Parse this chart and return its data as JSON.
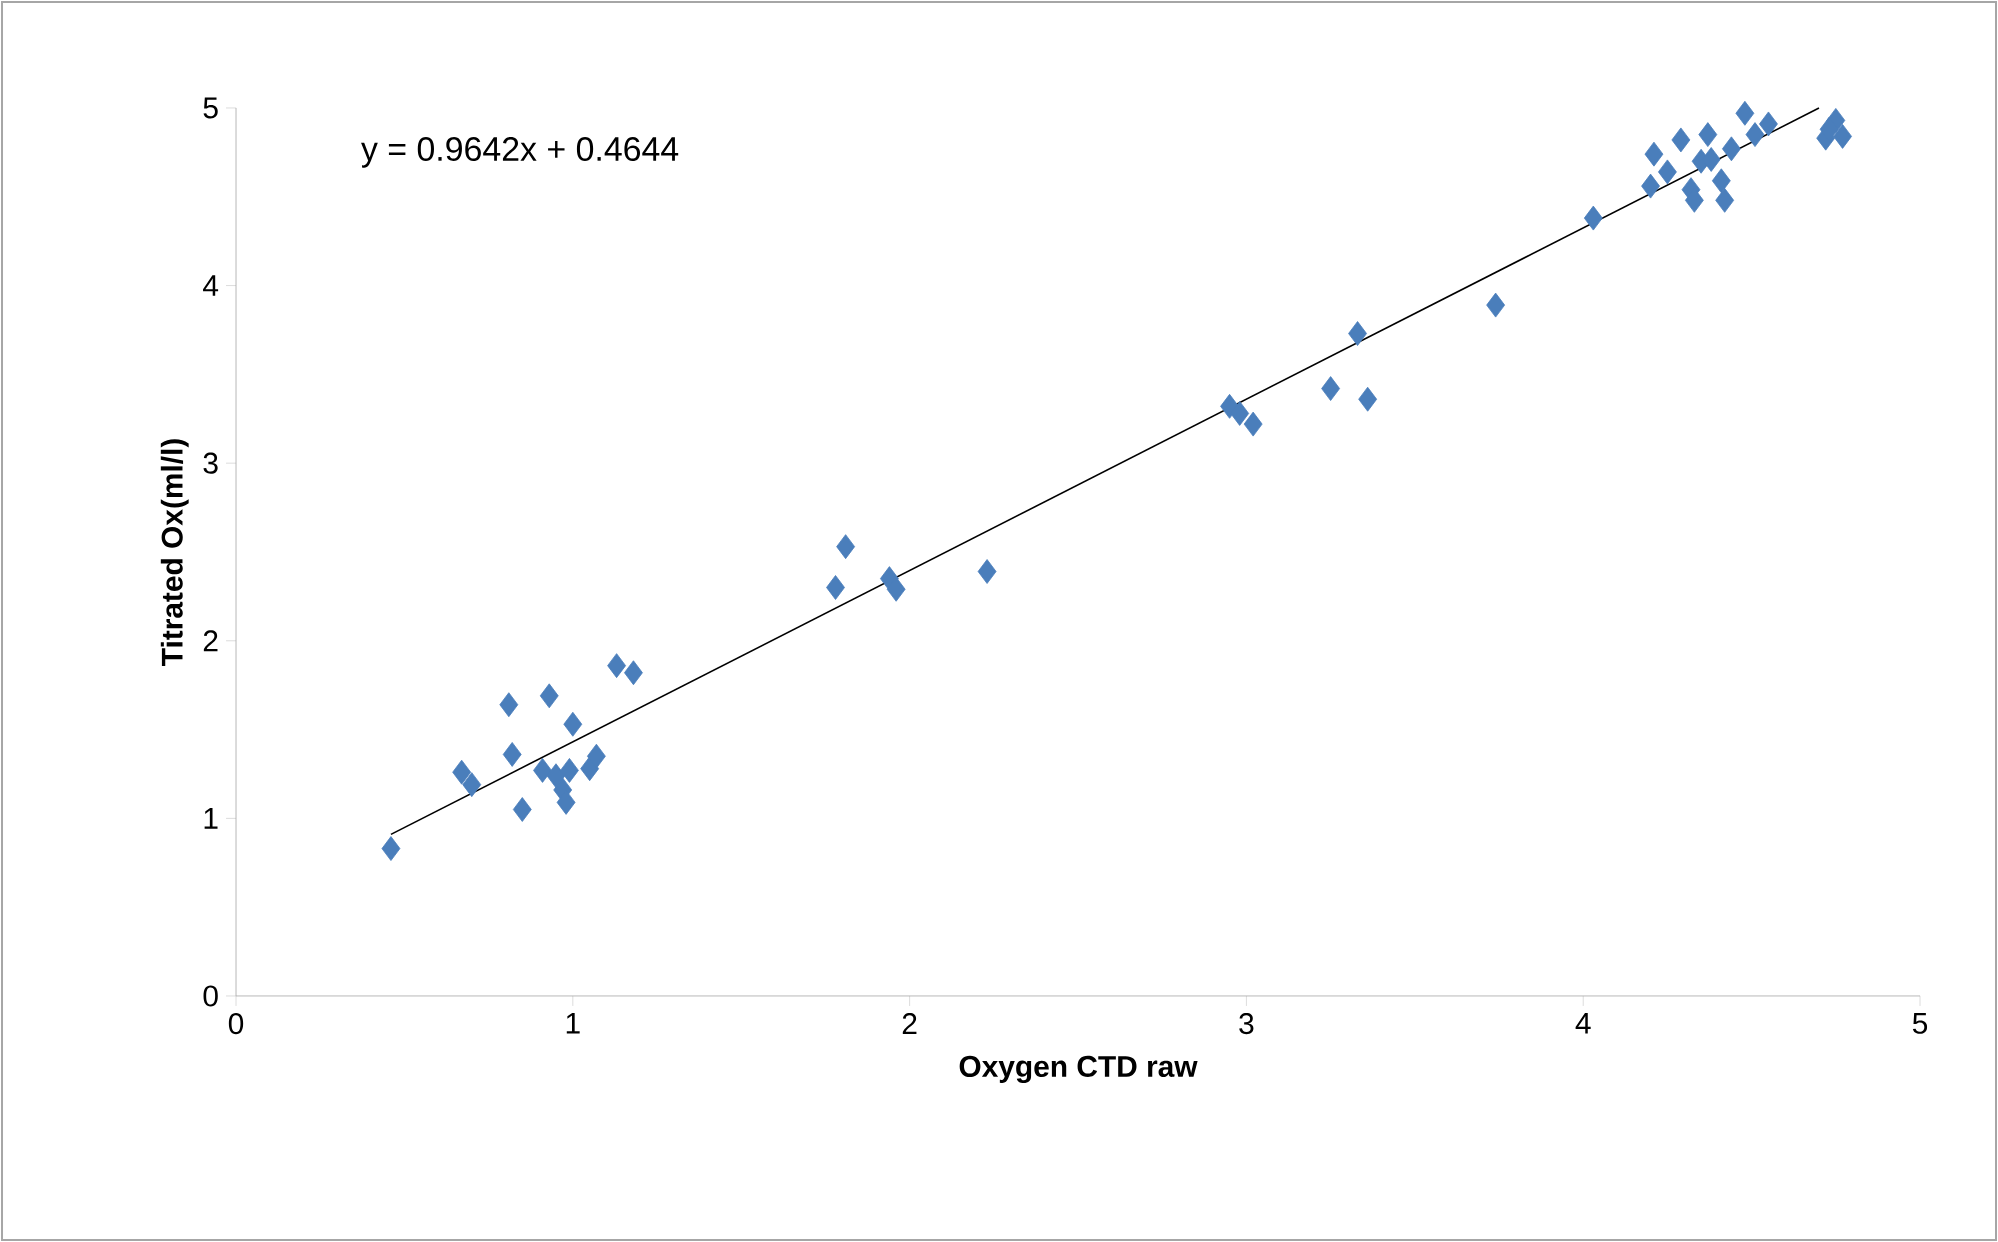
{
  "chart_data": {
    "type": "scatter",
    "xlabel": "Oxygen CTD raw",
    "ylabel": "Titrated Ox(ml/l)",
    "annotations": [
      "y = 0.9642x + 0.4644"
    ],
    "xlim": [
      0,
      5
    ],
    "ylim": [
      0,
      5
    ],
    "xticks": [
      0,
      1,
      2,
      3,
      4,
      5
    ],
    "yticks": [
      0,
      1,
      2,
      3,
      4,
      5
    ],
    "grid": false,
    "marker": "diamond",
    "series": [
      {
        "color": "#4a7ebb",
        "x": [
          0.46,
          0.67,
          0.7,
          0.81,
          0.82,
          0.85,
          0.93,
          0.91,
          0.97,
          0.98,
          1.0,
          1.05,
          1.07,
          1.13,
          1.18,
          0.95,
          0.99,
          1.78,
          1.81,
          1.94,
          1.96,
          2.23,
          2.95,
          3.02,
          2.98,
          3.25,
          3.33,
          3.36,
          3.74,
          4.03,
          4.2,
          4.21,
          4.25,
          4.29,
          4.32,
          4.35,
          4.37,
          4.41,
          4.42,
          4.44,
          4.48,
          4.51,
          4.55,
          4.33,
          4.38,
          4.72,
          4.75,
          4.77,
          4.73
        ],
        "values": [
          0.83,
          1.26,
          1.19,
          1.64,
          1.36,
          1.05,
          1.69,
          1.27,
          1.16,
          1.09,
          1.53,
          1.28,
          1.35,
          1.86,
          1.82,
          1.24,
          1.27,
          2.3,
          2.53,
          2.35,
          2.29,
          2.39,
          3.32,
          3.22,
          3.28,
          3.42,
          3.73,
          3.36,
          3.89,
          4.38,
          4.56,
          4.74,
          4.64,
          4.82,
          4.54,
          4.7,
          4.85,
          4.59,
          4.48,
          4.77,
          4.97,
          4.85,
          4.91,
          4.48,
          4.71,
          4.83,
          4.93,
          4.84,
          4.88
        ]
      },
      {
        "type": "line",
        "marker": "none",
        "color": "#000000",
        "x": [
          0.46,
          4.7
        ],
        "values": [
          0.91,
          5.0
        ]
      }
    ]
  }
}
